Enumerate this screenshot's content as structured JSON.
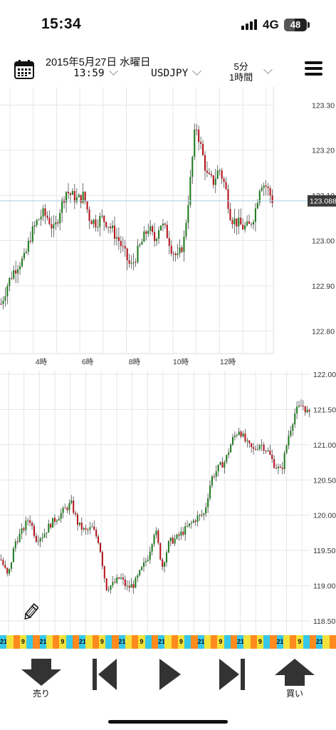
{
  "status_bar": {
    "time": "15:34",
    "network": "4G",
    "battery": "48",
    "battery_level": 0.48
  },
  "toolbar": {
    "date": "2015年5月27日 水曜日",
    "time": "13:59",
    "symbol": "USDJPY",
    "timeframe_top": "5分",
    "timeframe_bottom": "1時間"
  },
  "colors": {
    "up": "#1f7a1f",
    "down": "#b3121b",
    "wick": "#333333",
    "price_line": "#a9cde8",
    "grid": "#e6e6e6"
  },
  "top_chart": {
    "y_ticks": [
      "123.30",
      "123.20",
      "123.10",
      "123.00",
      "122.90",
      "122.80"
    ],
    "x_ticks": [
      "4時",
      "6時",
      "8時",
      "10時",
      "12時"
    ],
    "current_price": "123.088",
    "chart_data": {
      "type": "candlestick",
      "ylim": [
        122.75,
        123.34
      ],
      "tick_values": [
        123.3,
        123.2,
        123.1,
        123.0,
        122.9,
        122.8
      ],
      "x_ticks": [
        "4時",
        "6時",
        "8時",
        "10時",
        "12時"
      ],
      "close_path": [
        122.86,
        122.9,
        122.93,
        122.95,
        122.96,
        123.01,
        123.04,
        123.06,
        123.05,
        123.02,
        123.07,
        123.11,
        123.1,
        123.09,
        123.1,
        123.05,
        123.04,
        123.05,
        123.04,
        123.02,
        123.0,
        122.97,
        122.94,
        122.97,
        123.0,
        123.03,
        123.0,
        123.04,
        123.02,
        122.98,
        122.96,
        123.0,
        123.12,
        123.26,
        123.2,
        123.14,
        123.13,
        123.16,
        123.12,
        123.05,
        123.04,
        123.03,
        123.03,
        123.06,
        123.13,
        123.12,
        123.09
      ]
    }
  },
  "bottom_chart": {
    "y_ticks": [
      "122.00",
      "121.50",
      "121.00",
      "120.50",
      "120.00",
      "119.50",
      "119.00",
      "118.50"
    ],
    "chart_data": {
      "type": "candlestick",
      "ylim": [
        118.45,
        122.05
      ],
      "tick_values": [
        122.0,
        121.5,
        121.0,
        120.5,
        120.0,
        119.5,
        119.0,
        118.5
      ],
      "close_path": [
        119.45,
        119.2,
        119.7,
        119.85,
        120.05,
        119.75,
        119.8,
        119.95,
        120.05,
        120.15,
        120.25,
        119.95,
        119.85,
        119.9,
        119.7,
        119.05,
        119.1,
        119.2,
        119.05,
        119.1,
        119.3,
        119.5,
        119.9,
        119.35,
        119.7,
        119.75,
        119.85,
        119.95,
        120.05,
        120.1,
        120.6,
        120.75,
        120.85,
        121.15,
        121.3,
        121.1,
        121.0,
        121.1,
        121.0,
        120.8,
        120.7,
        121.2,
        121.55,
        121.65,
        121.5
      ]
    }
  },
  "strip": {
    "labels": [
      "21",
      "9"
    ]
  },
  "controls": {
    "sell_label": "売り",
    "buy_label": "買い"
  }
}
